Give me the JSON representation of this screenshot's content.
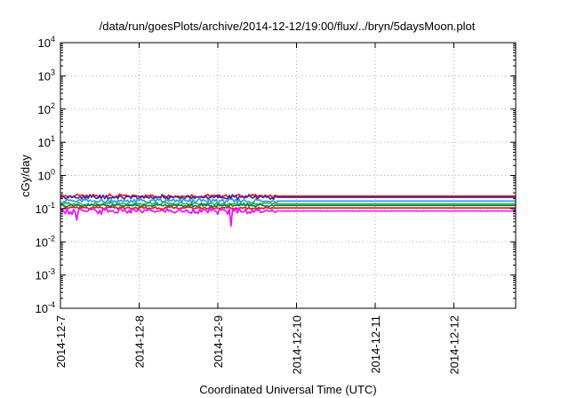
{
  "chart_data": {
    "type": "line",
    "title": "/data/run/goesPlots/archive/2014-12-12/19:00/flux/../bryn/5daysMoon.plot",
    "xlabel": "Coordinated Universal Time (UTC)",
    "ylabel": "cGy/day",
    "yscale": "log",
    "ylim": [
      0.0001,
      10000
    ],
    "xlim": [
      "2014-12-07T00:00",
      "2014-12-12T19:00"
    ],
    "grid": true,
    "legend": "none",
    "x_tick_labels": [
      "2014-12-7",
      "2014-12-8",
      "2014-12-9",
      "2014-12-10",
      "2014-12-11",
      "2014-12-12"
    ],
    "y_tick_labels": [
      {
        "base": "10",
        "exp": "-4",
        "value": 0.0001
      },
      {
        "base": "10",
        "exp": "-3",
        "value": 0.001
      },
      {
        "base": "10",
        "exp": "-2",
        "value": 0.01
      },
      {
        "base": "10",
        "exp": "-1",
        "value": 0.1
      },
      {
        "base": "10",
        "exp": "0",
        "value": 1
      },
      {
        "base": "10",
        "exp": "1",
        "value": 10
      },
      {
        "base": "10",
        "exp": "2",
        "value": 100
      },
      {
        "base": "10",
        "exp": "3",
        "value": 1000
      },
      {
        "base": "10",
        "exp": "4",
        "value": 10000
      }
    ],
    "data_end": "2014-12-09T18:00",
    "series": [
      {
        "color": "#e41a1c",
        "level": 0.24,
        "noise": 0.07,
        "dips": []
      },
      {
        "color": "#4a1fa0",
        "level": 0.22,
        "noise": 0.08,
        "dips": []
      },
      {
        "color": "#1f9cf0",
        "level": 0.17,
        "noise": 0.09,
        "dips": []
      },
      {
        "color": "#33b24a",
        "level": 0.14,
        "noise": 0.06,
        "dips": []
      },
      {
        "color": "#0a7a3a",
        "level": 0.125,
        "noise": 0.05,
        "dips": []
      },
      {
        "color": "#cc2222",
        "level": 0.105,
        "noise": 0.05,
        "dips": []
      },
      {
        "color": "#ff00ff",
        "level": 0.085,
        "noise": 0.11,
        "dips": [
          {
            "t": "2014-12-07T05:00",
            "value": 0.045
          },
          {
            "t": "2014-12-09T04:00",
            "value": 0.03
          }
        ]
      }
    ]
  }
}
